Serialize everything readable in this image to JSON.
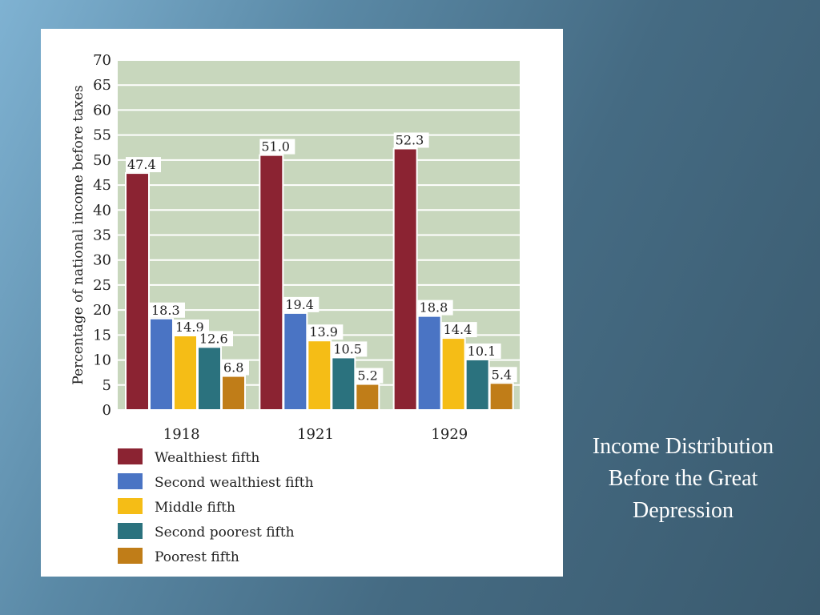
{
  "slide": {
    "caption": "Income Distribution Before the Great Depression"
  },
  "chart_data": {
    "type": "bar",
    "title": "",
    "xlabel": "",
    "ylabel": "Percentage of national income before taxes",
    "ylim": [
      0,
      70
    ],
    "yticks": [
      0,
      5,
      10,
      15,
      20,
      25,
      30,
      35,
      40,
      45,
      50,
      55,
      60,
      65,
      70
    ],
    "grid": true,
    "legend_position": "bottom",
    "categories": [
      "1918",
      "1921",
      "1929"
    ],
    "series": [
      {
        "name": "Wealthiest fifth",
        "color": "#8b2332",
        "values": [
          47.4,
          51.0,
          52.3
        ],
        "labels": [
          "47.4",
          "51.0",
          "52.3"
        ]
      },
      {
        "name": "Second wealthiest fifth",
        "color": "#4a74c4",
        "values": [
          18.3,
          19.4,
          18.8
        ],
        "labels": [
          "18.3",
          "19.4",
          "18.8"
        ]
      },
      {
        "name": "Middle fifth",
        "color": "#f5bd16",
        "values": [
          14.9,
          13.9,
          14.4
        ],
        "labels": [
          "14.9",
          "13.9",
          "14.4"
        ]
      },
      {
        "name": "Second poorest fifth",
        "color": "#2b727e",
        "values": [
          12.6,
          10.5,
          10.1
        ],
        "labels": [
          "12.6",
          "10.5",
          "10.1"
        ]
      },
      {
        "name": "Poorest fifth",
        "color": "#c07d18",
        "values": [
          6.8,
          5.2,
          5.4
        ],
        "labels": [
          "6.8",
          "5.2",
          "5.4"
        ]
      }
    ],
    "plot_background": "#c8d7bd"
  }
}
